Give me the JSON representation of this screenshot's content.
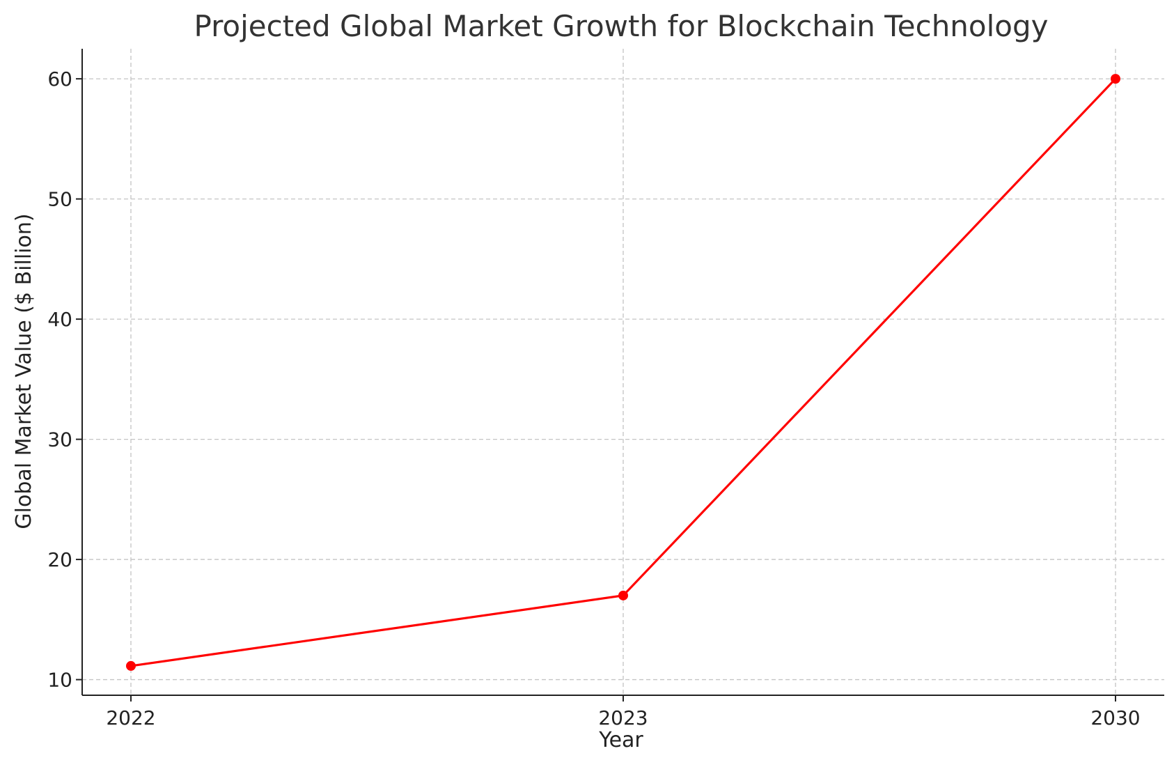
{
  "chart_data": {
    "type": "line",
    "title": "Projected Global Market Growth for Blockchain Technology",
    "xlabel": "Year",
    "ylabel": "Global Market Value ($ Billion)",
    "x": [
      "2022",
      "2023",
      "2030"
    ],
    "series": [
      {
        "name": "Global Market Value",
        "values": [
          11.14,
          17.0,
          60.0
        ],
        "color": "#ff0000"
      }
    ],
    "yticks": [
      10,
      20,
      30,
      40,
      50,
      60
    ],
    "ylim": [
      8.7,
      62.5
    ],
    "grid": true,
    "marker": "circle"
  }
}
